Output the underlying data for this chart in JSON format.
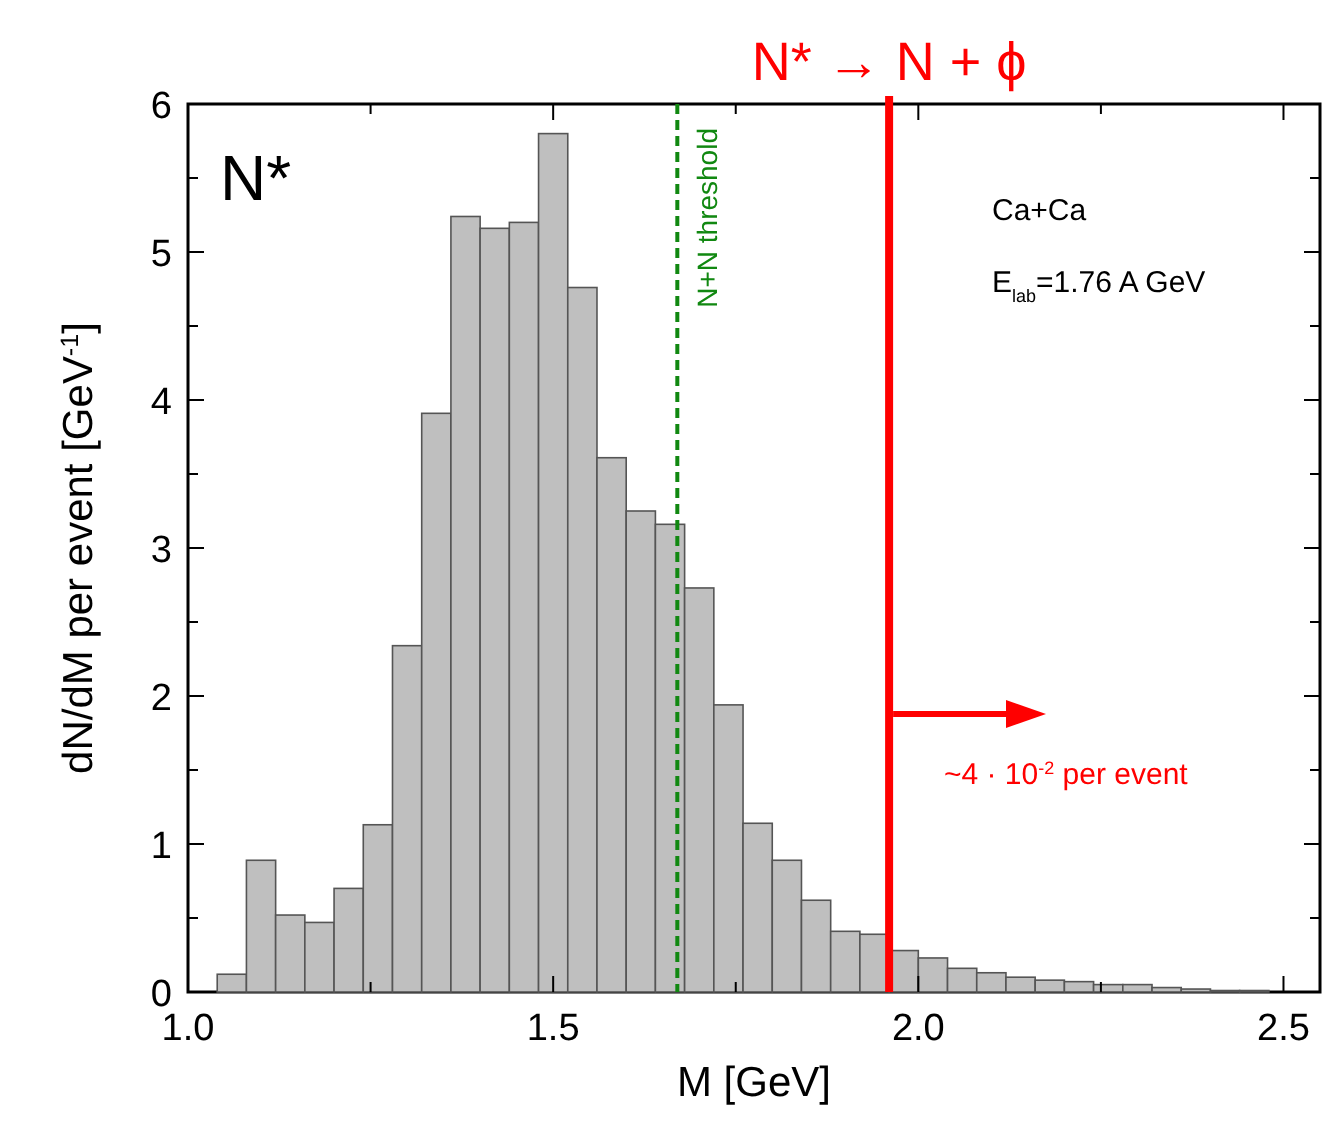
{
  "chart_data": {
    "type": "histogram",
    "xlabel": "M [GeV]",
    "ylabel": "dN/dM per event [GeV$^{-1}$]",
    "bins": [
      1.04,
      1.08,
      1.12,
      1.16,
      1.2,
      1.24,
      1.28,
      1.32,
      1.36,
      1.4,
      1.44,
      1.48,
      1.52,
      1.56,
      1.6,
      1.64,
      1.68,
      1.72,
      1.76,
      1.8,
      1.84,
      1.88,
      1.92,
      1.96,
      2.0,
      2.04,
      2.08,
      2.12,
      2.16,
      2.2,
      2.24,
      2.28,
      2.32,
      2.36,
      2.4,
      2.44,
      2.48
    ],
    "values": [
      0.12,
      0.89,
      0.52,
      0.47,
      0.7,
      1.13,
      2.34,
      3.91,
      5.24,
      5.16,
      5.2,
      5.8,
      4.76,
      3.61,
      3.25,
      3.16,
      2.73,
      1.94,
      1.14,
      0.89,
      0.62,
      0.41,
      0.39,
      0.28,
      0.23,
      0.16,
      0.13,
      0.1,
      0.08,
      0.07,
      0.05,
      0.05,
      0.03,
      0.02,
      0.01,
      0.01
    ],
    "color": "#bfbfbf",
    "xlim": [
      1.0,
      2.55
    ],
    "xticks": [
      {
        "value": 1,
        "label": "1.0"
      },
      {
        "value": 1.25,
        "label": null
      },
      {
        "value": 1.5,
        "label": "1.5"
      },
      {
        "value": 1.75,
        "label": null
      },
      {
        "value": 2,
        "label": "2.0"
      },
      {
        "value": 2.25,
        "label": null
      },
      {
        "value": 2.5,
        "label": "2.5"
      }
    ],
    "ylim": [
      0,
      6
    ],
    "yticks": [
      0,
      {
        "value": 0.5,
        "label": null
      },
      1,
      {
        "value": 1.5,
        "label": null
      },
      2,
      {
        "value": 2.5,
        "label": null
      },
      3,
      {
        "value": 3.5,
        "label": null
      },
      4,
      {
        "value": 4.5,
        "label": null
      },
      5,
      {
        "value": 5.5,
        "label": null
      },
      6
    ],
    "ref_lines": [
      {
        "axis": "x",
        "value": 1.67,
        "label": "N+N threshold",
        "color": "#118811",
        "line_style": "dashed"
      },
      {
        "axis": "x",
        "value": 1.96,
        "label": "N* → N + ϕ",
        "color": "#ff0000",
        "line_style": "solid"
      }
    ],
    "annotations": [
      "N*",
      "Ca+Ca",
      "E$_{lab}$=1.76 A GeV",
      "~4 · 10$^{-2}$ per event"
    ],
    "grid": false
  }
}
